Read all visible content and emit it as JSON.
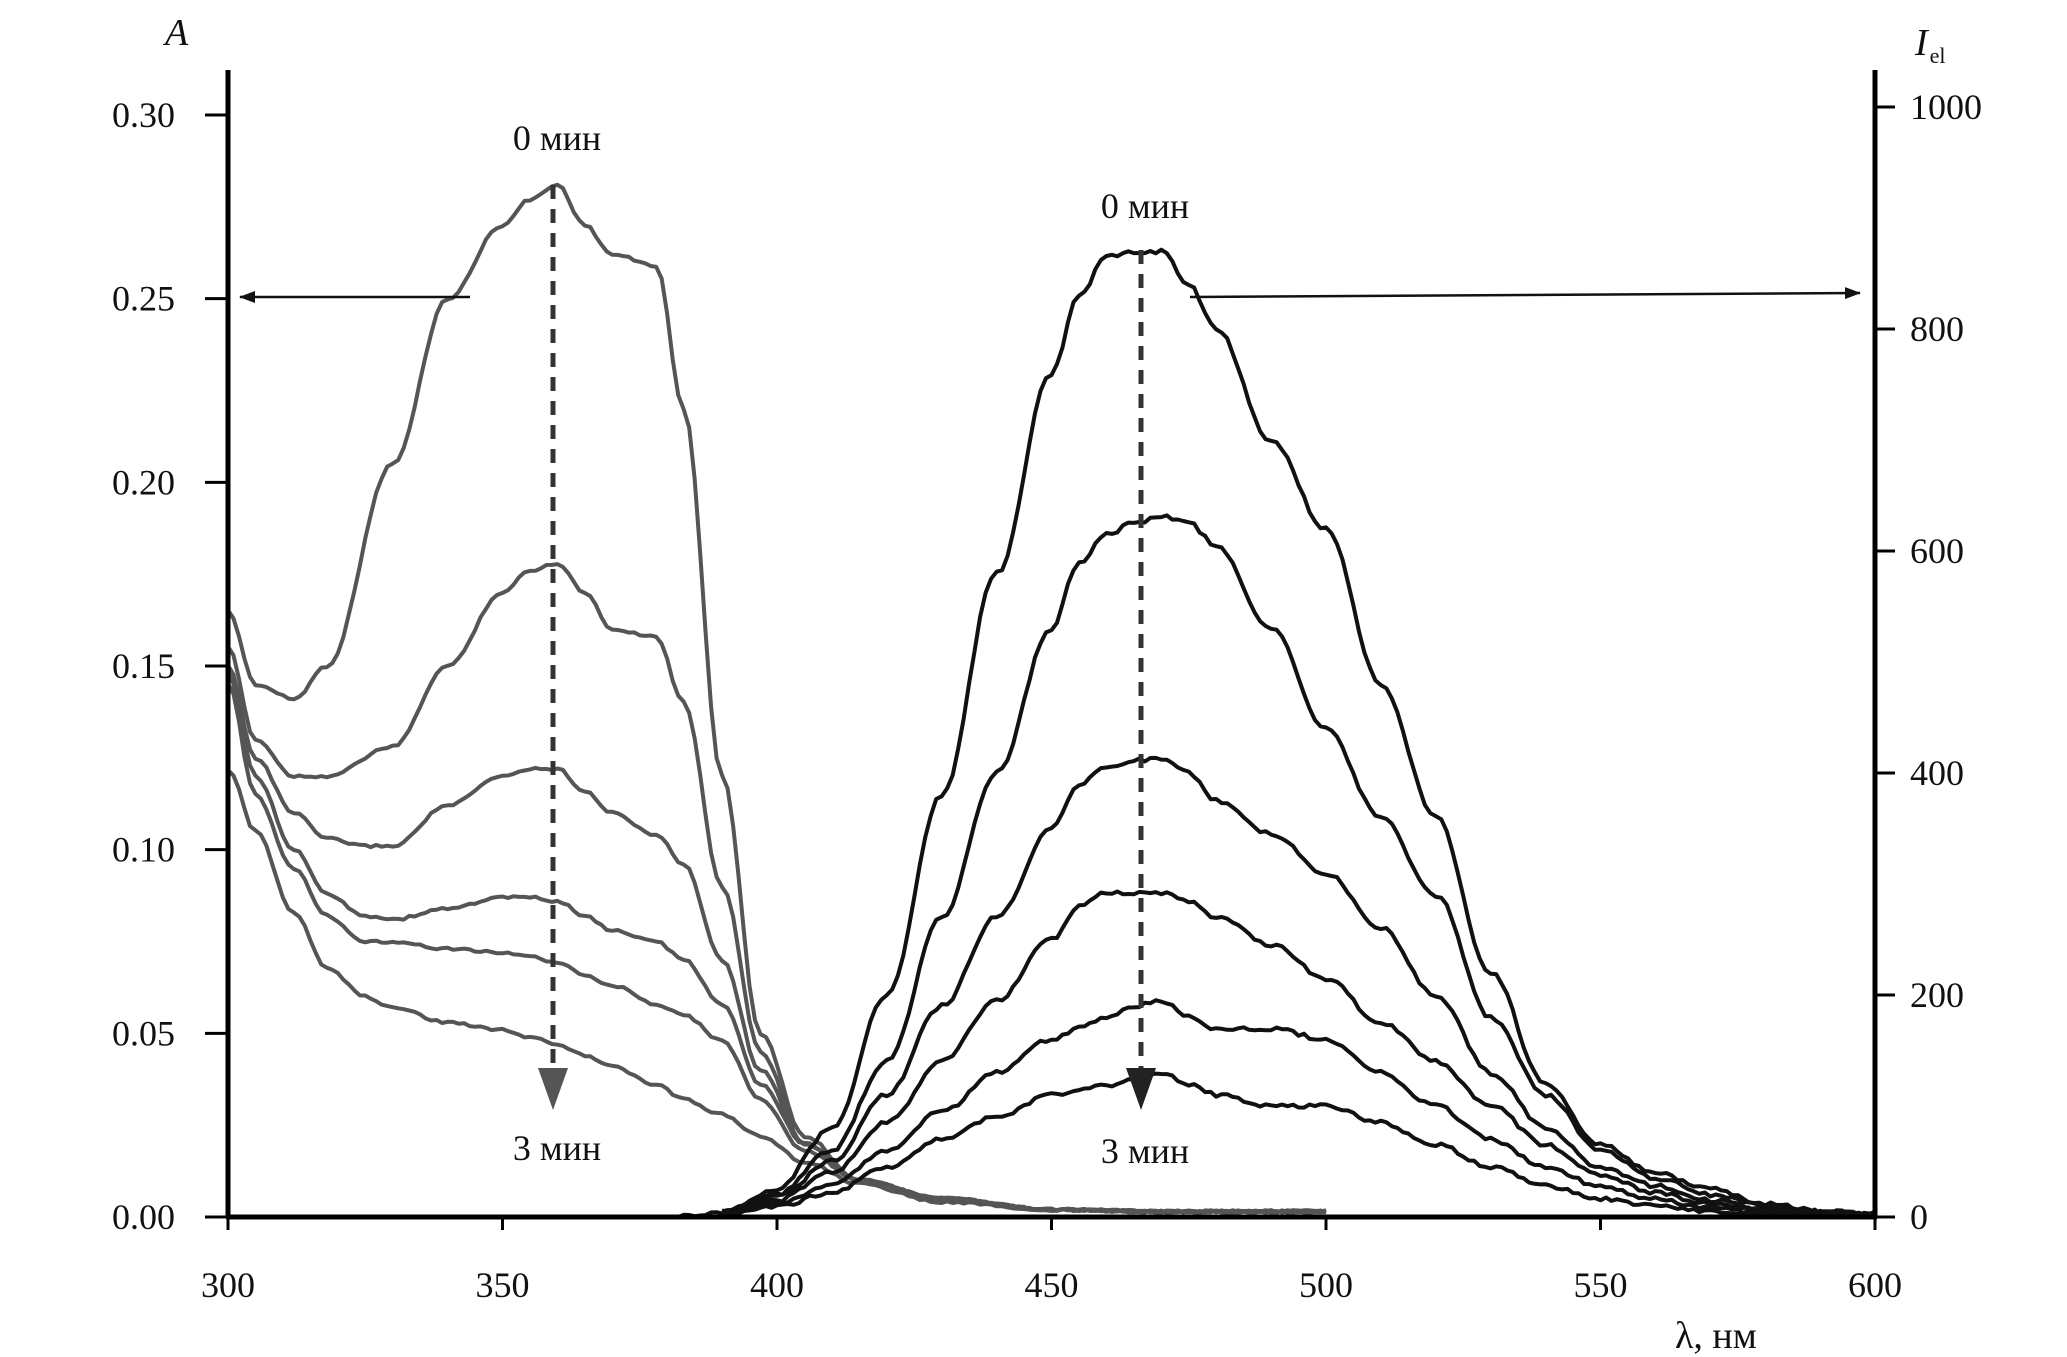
{
  "chart_data": {
    "type": "line",
    "x_axis": {
      "label": "λ, нм",
      "min": 300,
      "max": 600,
      "ticks": [
        300,
        350,
        400,
        450,
        500,
        550,
        600
      ]
    },
    "y_left": {
      "label": "A",
      "min": 0,
      "max": 0.3,
      "ticks": [
        "0.00",
        "0.05",
        "0.10",
        "0.15",
        "0.20",
        "0.25",
        "0.30"
      ]
    },
    "y_right": {
      "label_main": "I",
      "label_sub": "el",
      "min": 0,
      "max": 1000,
      "ticks": [
        "0",
        "200",
        "400",
        "600",
        "800",
        "1000"
      ]
    },
    "grid": false,
    "legend": "none",
    "annotations": {
      "abs_top": "0 мин",
      "abs_bottom": "3 мин",
      "em_top": "0 мин",
      "em_bottom": "3 мин"
    },
    "colors": {
      "absorption": "#555555",
      "emission": "#111111",
      "axis": "#000000"
    },
    "absorption_series": [
      {
        "x": [
          300,
          305,
          312,
          318,
          330,
          340,
          350,
          355,
          360,
          365,
          370,
          378,
          383,
          390,
          397,
          405,
          415,
          430,
          450,
          470,
          500
        ],
        "y": [
          0.165,
          0.145,
          0.141,
          0.15,
          0.205,
          0.25,
          0.27,
          0.277,
          0.281,
          0.27,
          0.262,
          0.259,
          0.22,
          0.12,
          0.05,
          0.022,
          0.01,
          0.005,
          0.002,
          0.0015,
          0.0015
        ]
      },
      {
        "x": [
          300,
          305,
          312,
          318,
          330,
          340,
          350,
          355,
          360,
          365,
          370,
          378,
          383,
          390,
          397,
          405,
          415,
          430,
          450,
          470,
          500
        ],
        "y": [
          0.155,
          0.13,
          0.12,
          0.12,
          0.128,
          0.15,
          0.17,
          0.176,
          0.178,
          0.17,
          0.16,
          0.158,
          0.14,
          0.09,
          0.045,
          0.02,
          0.01,
          0.005,
          0.002,
          0.0015,
          0.0015
        ]
      },
      {
        "x": [
          300,
          305,
          312,
          318,
          325,
          330,
          340,
          350,
          355,
          360,
          365,
          370,
          378,
          383,
          390,
          397,
          405,
          415,
          430,
          450,
          470,
          500
        ],
        "y": [
          0.15,
          0.125,
          0.11,
          0.103,
          0.101,
          0.101,
          0.112,
          0.12,
          0.122,
          0.122,
          0.116,
          0.11,
          0.104,
          0.096,
          0.07,
          0.04,
          0.02,
          0.01,
          0.005,
          0.002,
          0.0015,
          0.0015
        ]
      },
      {
        "x": [
          300,
          305,
          312,
          318,
          325,
          330,
          340,
          350,
          355,
          360,
          365,
          370,
          378,
          383,
          390,
          397,
          405,
          415,
          430,
          450,
          470,
          500
        ],
        "y": [
          0.148,
          0.12,
          0.1,
          0.088,
          0.082,
          0.081,
          0.084,
          0.087,
          0.087,
          0.086,
          0.082,
          0.078,
          0.075,
          0.07,
          0.058,
          0.036,
          0.02,
          0.01,
          0.005,
          0.002,
          0.0015,
          0.0015
        ]
      },
      {
        "x": [
          300,
          305,
          312,
          318,
          325,
          330,
          340,
          350,
          355,
          360,
          365,
          370,
          378,
          383,
          390,
          397,
          405,
          415,
          430,
          450,
          470,
          500
        ],
        "y": [
          0.145,
          0.115,
          0.095,
          0.082,
          0.075,
          0.075,
          0.073,
          0.072,
          0.071,
          0.069,
          0.066,
          0.063,
          0.058,
          0.055,
          0.048,
          0.032,
          0.018,
          0.01,
          0.005,
          0.002,
          0.0015,
          0.0015
        ]
      },
      {
        "x": [
          300,
          305,
          312,
          318,
          325,
          330,
          340,
          350,
          355,
          360,
          365,
          370,
          378,
          383,
          390,
          397,
          405,
          415,
          430,
          450,
          470,
          500
        ],
        "y": [
          0.122,
          0.105,
          0.083,
          0.068,
          0.06,
          0.057,
          0.053,
          0.051,
          0.049,
          0.047,
          0.044,
          0.041,
          0.036,
          0.032,
          0.028,
          0.022,
          0.015,
          0.009,
          0.004,
          0.002,
          0.0015,
          0.0015
        ]
      }
    ],
    "emission_series": [
      {
        "x": [
          382,
          390,
          400,
          410,
          420,
          430,
          440,
          450,
          455,
          460,
          465,
          470,
          475,
          480,
          490,
          500,
          510,
          520,
          530,
          540,
          550,
          560,
          570,
          580,
          590,
          600
        ],
        "y": [
          0,
          5,
          25,
          80,
          200,
          380,
          580,
          760,
          830,
          865,
          870,
          870,
          840,
          800,
          700,
          620,
          480,
          360,
          220,
          120,
          65,
          40,
          25,
          12,
          6,
          3
        ]
      },
      {
        "x": [
          390,
          400,
          410,
          420,
          430,
          440,
          450,
          455,
          460,
          465,
          470,
          475,
          480,
          490,
          500,
          510,
          520,
          530,
          540,
          550,
          560,
          570,
          580,
          590,
          600
        ],
        "y": [
          5,
          20,
          60,
          140,
          270,
          400,
          530,
          590,
          615,
          625,
          632,
          625,
          605,
          530,
          440,
          360,
          290,
          180,
          110,
          60,
          35,
          20,
          10,
          5,
          3
        ]
      },
      {
        "x": [
          390,
          400,
          410,
          420,
          430,
          440,
          450,
          455,
          460,
          465,
          470,
          475,
          480,
          490,
          500,
          510,
          520,
          530,
          540,
          550,
          560,
          570,
          580,
          590,
          600
        ],
        "y": [
          5,
          18,
          50,
          110,
          190,
          270,
          350,
          390,
          405,
          412,
          412,
          400,
          375,
          345,
          310,
          260,
          200,
          130,
          80,
          45,
          28,
          15,
          8,
          4,
          2
        ]
      },
      {
        "x": [
          390,
          400,
          410,
          420,
          430,
          440,
          450,
          455,
          460,
          465,
          470,
          475,
          480,
          490,
          500,
          510,
          520,
          530,
          540,
          550,
          560,
          570,
          580,
          590,
          600
        ],
        "y": [
          4,
          15,
          40,
          85,
          140,
          195,
          250,
          280,
          292,
          292,
          292,
          285,
          270,
          245,
          215,
          175,
          140,
          100,
          65,
          38,
          22,
          12,
          6,
          3,
          2
        ]
      },
      {
        "x": [
          390,
          400,
          410,
          420,
          430,
          440,
          450,
          455,
          460,
          465,
          470,
          475,
          480,
          490,
          500,
          510,
          520,
          530,
          540,
          550,
          560,
          570,
          580,
          590,
          600
        ],
        "y": [
          3,
          12,
          30,
          60,
          95,
          130,
          160,
          170,
          180,
          190,
          195,
          180,
          170,
          170,
          160,
          130,
          100,
          70,
          45,
          28,
          16,
          8,
          4,
          2,
          1
        ]
      },
      {
        "x": [
          390,
          400,
          410,
          420,
          430,
          440,
          450,
          455,
          460,
          465,
          470,
          475,
          480,
          490,
          500,
          510,
          520,
          530,
          540,
          550,
          560,
          570,
          580,
          590,
          600
        ],
        "y": [
          2,
          10,
          22,
          45,
          70,
          90,
          110,
          115,
          118,
          125,
          130,
          120,
          110,
          100,
          100,
          85,
          65,
          45,
          28,
          16,
          10,
          5,
          3,
          1,
          1
        ]
      }
    ]
  }
}
